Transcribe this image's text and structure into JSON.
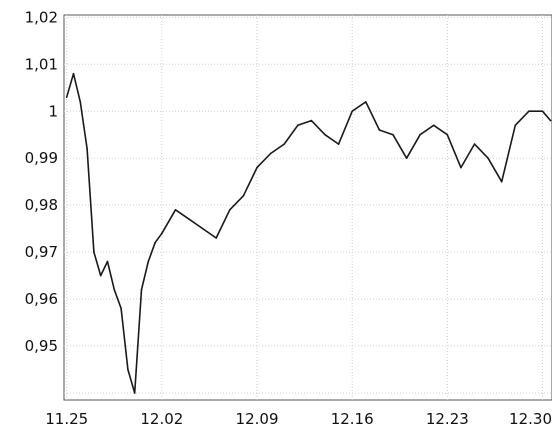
{
  "chart_data": {
    "type": "line",
    "title": "",
    "xlabel": "",
    "ylabel": "",
    "grid": true,
    "legend": "none",
    "x_tick_labels": [
      "11.25",
      "12.02",
      "12.09",
      "12.16",
      "12.23",
      "12.30"
    ],
    "x_ticks_day_index": [
      0,
      7,
      14,
      21,
      28,
      35
    ],
    "xlim": [
      -0.2,
      35.7
    ],
    "y_tick_labels": [
      "1,02",
      "1,01",
      "1",
      "0,99",
      "0,98",
      "0,97",
      "0,96",
      "0,95"
    ],
    "y_ticks": [
      1.02,
      1.01,
      1.0,
      0.99,
      0.98,
      0.97,
      0.96,
      0.95
    ],
    "ylim": [
      0.9385,
      1.0205
    ],
    "series": [
      {
        "color": "#1a1a1a",
        "x": [
          0,
          0.5,
          1,
          1.5,
          2,
          2.5,
          3,
          3.5,
          4,
          4.5,
          5,
          5.5,
          6,
          6.5,
          7,
          8,
          9,
          10,
          11,
          12,
          13,
          14,
          15,
          16,
          17,
          18,
          19,
          20,
          21,
          22,
          23,
          24,
          25,
          26,
          27,
          28,
          29,
          30,
          31,
          32,
          33,
          34,
          35,
          35.6
        ],
        "values": [
          1.003,
          1.008,
          1.002,
          0.992,
          0.97,
          0.965,
          0.968,
          0.962,
          0.958,
          0.945,
          0.94,
          0.962,
          0.968,
          0.972,
          0.974,
          0.979,
          0.977,
          0.975,
          0.973,
          0.979,
          0.982,
          0.988,
          0.991,
          0.993,
          0.997,
          0.998,
          0.995,
          0.993,
          1.0,
          1.002,
          0.996,
          0.995,
          0.99,
          0.995,
          0.997,
          0.995,
          0.988,
          0.993,
          0.99,
          0.985,
          0.997,
          1.0,
          1.0,
          0.998
        ]
      }
    ]
  }
}
